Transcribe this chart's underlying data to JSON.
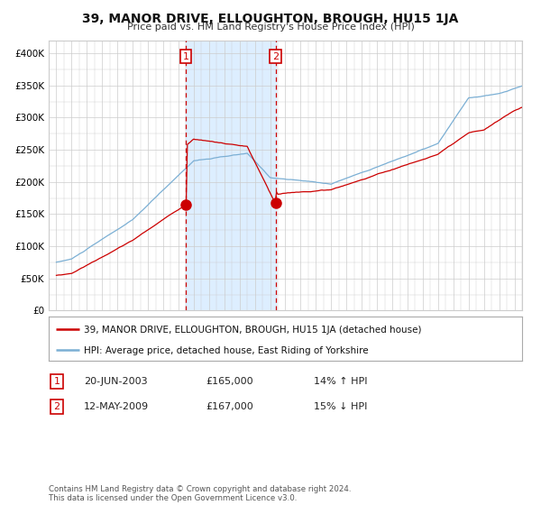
{
  "title": "39, MANOR DRIVE, ELLOUGHTON, BROUGH, HU15 1JA",
  "subtitle": "Price paid vs. HM Land Registry's House Price Index (HPI)",
  "legend_line1": "39, MANOR DRIVE, ELLOUGHTON, BROUGH, HU15 1JA (detached house)",
  "legend_line2": "HPI: Average price, detached house, East Riding of Yorkshire",
  "annotation1_date": "20-JUN-2003",
  "annotation1_price": "£165,000",
  "annotation1_hpi": "14% ↑ HPI",
  "annotation2_date": "12-MAY-2009",
  "annotation2_price": "£167,000",
  "annotation2_hpi": "15% ↓ HPI",
  "footer": "Contains HM Land Registry data © Crown copyright and database right 2024.\nThis data is licensed under the Open Government Licence v3.0.",
  "sale1_year": 2003.47,
  "sale1_value": 165000,
  "sale2_year": 2009.36,
  "sale2_value": 167000,
  "red_line_color": "#cc0000",
  "blue_line_color": "#7bafd4",
  "dot_color": "#cc0000",
  "vline_color": "#cc0000",
  "shade_color": "#ddeeff",
  "grid_color": "#cccccc",
  "background_color": "#ffffff",
  "ylim": [
    0,
    420000
  ],
  "yticks": [
    0,
    50000,
    100000,
    150000,
    200000,
    250000,
    300000,
    350000,
    400000
  ],
  "xlim_start": 1994.5,
  "xlim_end": 2025.5
}
